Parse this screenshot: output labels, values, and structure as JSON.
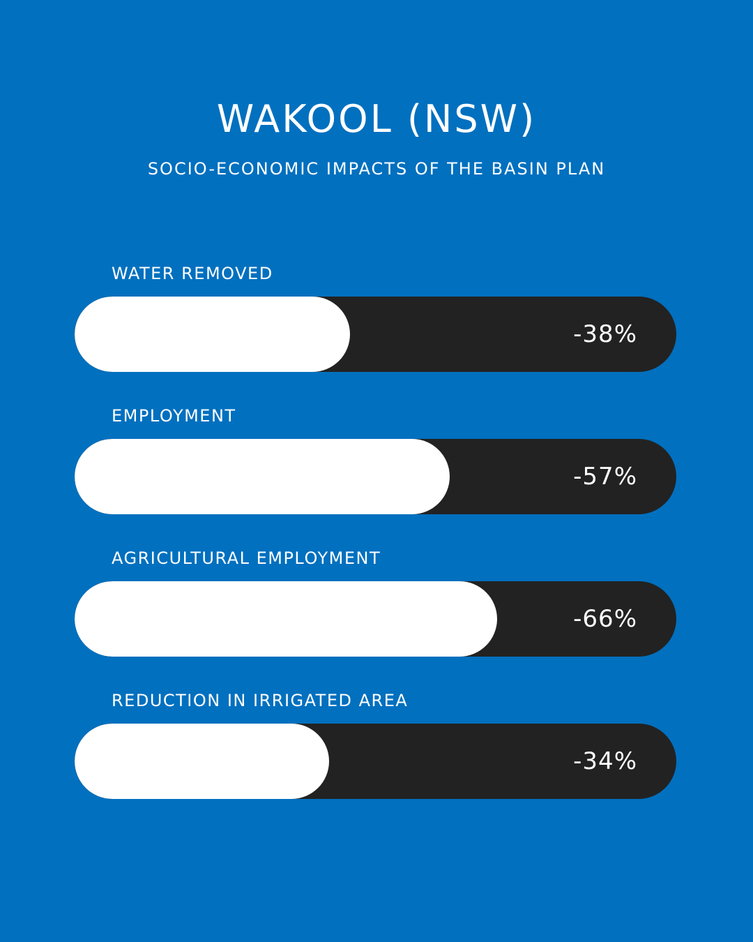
{
  "title": "WAKOOL (NSW)",
  "subtitle": "SOCIO-ECONOMIC IMPACTS OF THE BASIN PLAN",
  "colors": {
    "background": "#0170bf",
    "track": "#222222",
    "fill": "#ffffff"
  },
  "metrics": [
    {
      "label": "WATER REMOVED",
      "value_text": "-38%"
    },
    {
      "label": "EMPLOYMENT",
      "value_text": "-57%"
    },
    {
      "label": "AGRICULTURAL EMPLOYMENT",
      "value_text": "-66%"
    },
    {
      "label": "REDUCTION IN IRRIGATED AREA",
      "value_text": "-34%"
    }
  ],
  "chart_data": {
    "type": "bar",
    "title": "WAKOOL (NSW)",
    "subtitle": "SOCIO-ECONOMIC IMPACTS OF THE BASIN PLAN",
    "categories": [
      "WATER REMOVED",
      "EMPLOYMENT",
      "AGRICULTURAL EMPLOYMENT",
      "REDUCTION IN IRRIGATED AREA"
    ],
    "values": [
      -38,
      -57,
      -66,
      -34
    ],
    "unit": "%",
    "ylim": [
      0,
      100
    ]
  }
}
